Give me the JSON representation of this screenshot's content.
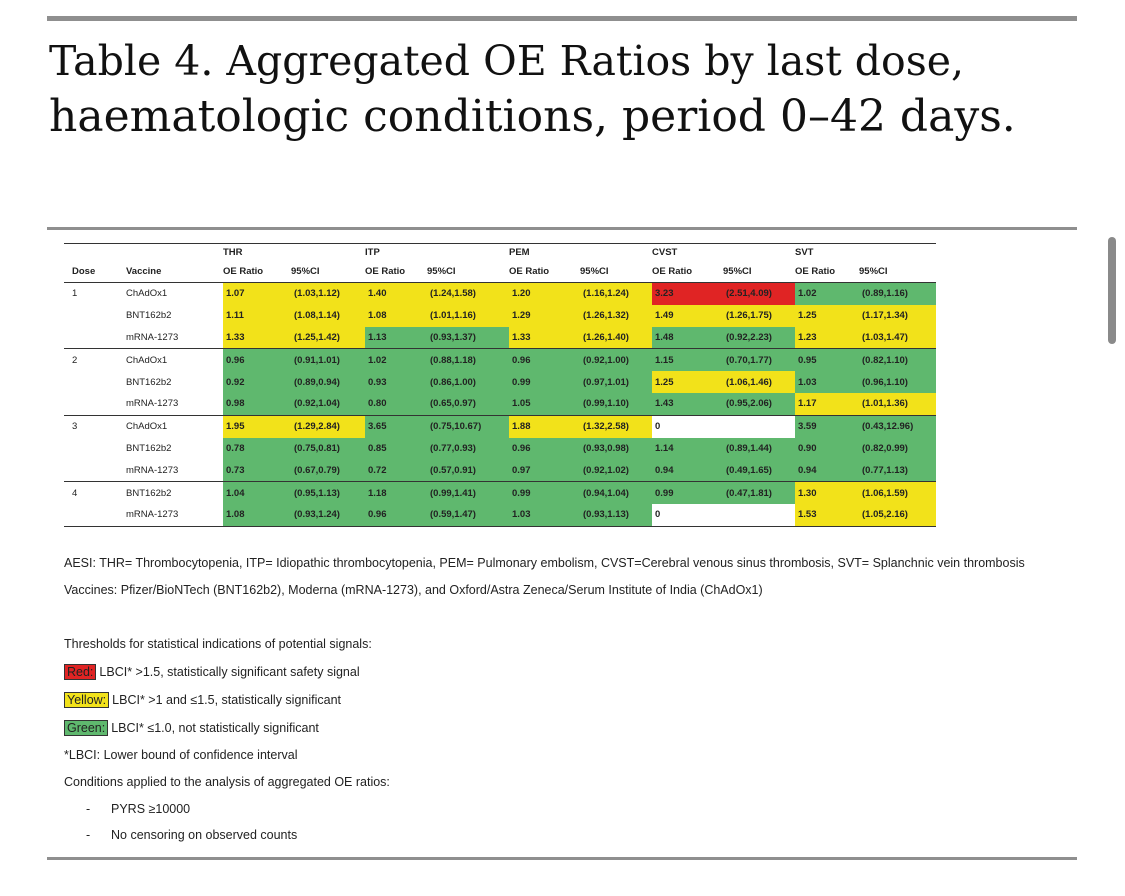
{
  "title": {
    "line1": "Table 4. Aggregated OE Ratios by last dose,",
    "line2": "haematologic conditions, period 0–42 days."
  },
  "table": {
    "groups": [
      "THR",
      "ITP",
      "PEM",
      "CVST",
      "SVT"
    ],
    "subheaders": [
      "Dose",
      "Vaccine",
      "OE Ratio",
      "95%CI",
      "OE Ratio",
      "95%CI",
      "OE Ratio",
      "95%CI",
      "OE Ratio",
      "95%CI",
      "OE Ratio",
      "95%CI"
    ],
    "colors": {
      "green": "#5fb86e",
      "yellow": "#f2e21a",
      "red": "#e02424"
    },
    "rows": [
      {
        "dose": "1",
        "vaccine": "ChAdOx1",
        "cells": [
          "1.07",
          "(1.03,1.12)",
          "1.40",
          "(1.24,1.58)",
          "1.20",
          "(1.16,1.24)",
          "3.23",
          "(2.51,4.09)",
          "1.02",
          "(0.89,1.16)"
        ],
        "colors": [
          "y",
          "y",
          "y",
          "y",
          "y",
          "y",
          "r",
          "r",
          "g",
          "g"
        ]
      },
      {
        "dose": "",
        "vaccine": "BNT162b2",
        "cells": [
          "1.11",
          "(1.08,1.14)",
          "1.08",
          "(1.01,1.16)",
          "1.29",
          "(1.26,1.32)",
          "1.49",
          "(1.26,1.75)",
          "1.25",
          "(1.17,1.34)"
        ],
        "colors": [
          "y",
          "y",
          "y",
          "y",
          "y",
          "y",
          "y",
          "y",
          "y",
          "y"
        ]
      },
      {
        "dose": "",
        "vaccine": "mRNA-1273",
        "cells": [
          "1.33",
          "(1.25,1.42)",
          "1.13",
          "(0.93,1.37)",
          "1.33",
          "(1.26,1.40)",
          "1.48",
          "(0.92,2.23)",
          "1.23",
          "(1.03,1.47)"
        ],
        "colors": [
          "y",
          "y",
          "g",
          "g",
          "y",
          "y",
          "g",
          "g",
          "y",
          "y"
        ]
      },
      {
        "dose": "2",
        "vaccine": "ChAdOx1",
        "cells": [
          "0.96",
          "(0.91,1.01)",
          "1.02",
          "(0.88,1.18)",
          "0.96",
          "(0.92,1.00)",
          "1.15",
          "(0.70,1.77)",
          "0.95",
          "(0.82,1.10)"
        ],
        "colors": [
          "g",
          "g",
          "g",
          "g",
          "g",
          "g",
          "g",
          "g",
          "g",
          "g"
        ]
      },
      {
        "dose": "",
        "vaccine": "BNT162b2",
        "cells": [
          "0.92",
          "(0.89,0.94)",
          "0.93",
          "(0.86,1.00)",
          "0.99",
          "(0.97,1.01)",
          "1.25",
          "(1.06,1.46)",
          "1.03",
          "(0.96,1.10)"
        ],
        "colors": [
          "g",
          "g",
          "g",
          "g",
          "g",
          "g",
          "y",
          "y",
          "g",
          "g"
        ]
      },
      {
        "dose": "",
        "vaccine": "mRNA-1273",
        "cells": [
          "0.98",
          "(0.92,1.04)",
          "0.80",
          "(0.65,0.97)",
          "1.05",
          "(0.99,1.10)",
          "1.43",
          "(0.95,2.06)",
          "1.17",
          "(1.01,1.36)"
        ],
        "colors": [
          "g",
          "g",
          "g",
          "g",
          "g",
          "g",
          "g",
          "g",
          "y",
          "y"
        ]
      },
      {
        "dose": "3",
        "vaccine": "ChAdOx1",
        "cells": [
          "1.95",
          "(1.29,2.84)",
          "3.65",
          "(0.75,10.67)",
          "1.88",
          "(1.32,2.58)",
          "0",
          "",
          "3.59",
          "(0.43,12.96)"
        ],
        "colors": [
          "y",
          "y",
          "g",
          "g",
          "y",
          "y",
          "w",
          "w",
          "g",
          "g"
        ]
      },
      {
        "dose": "",
        "vaccine": "BNT162b2",
        "cells": [
          "0.78",
          "(0.75,0.81)",
          "0.85",
          "(0.77,0.93)",
          "0.96",
          "(0.93,0.98)",
          "1.14",
          "(0.89,1.44)",
          "0.90",
          "(0.82,0.99)"
        ],
        "colors": [
          "g",
          "g",
          "g",
          "g",
          "g",
          "g",
          "g",
          "g",
          "g",
          "g"
        ]
      },
      {
        "dose": "",
        "vaccine": "mRNA-1273",
        "cells": [
          "0.73",
          "(0.67,0.79)",
          "0.72",
          "(0.57,0.91)",
          "0.97",
          "(0.92,1.02)",
          "0.94",
          "(0.49,1.65)",
          "0.94",
          "(0.77,1.13)"
        ],
        "colors": [
          "g",
          "g",
          "g",
          "g",
          "g",
          "g",
          "g",
          "g",
          "g",
          "g"
        ]
      },
      {
        "dose": "4",
        "vaccine": "BNT162b2",
        "cells": [
          "1.04",
          "(0.95,1.13)",
          "1.18",
          "(0.99,1.41)",
          "0.99",
          "(0.94,1.04)",
          "0.99",
          "(0.47,1.81)",
          "1.30",
          "(1.06,1.59)"
        ],
        "colors": [
          "g",
          "g",
          "g",
          "g",
          "g",
          "g",
          "g",
          "g",
          "y",
          "y"
        ]
      },
      {
        "dose": "",
        "vaccine": "mRNA-1273",
        "cells": [
          "1.08",
          "(0.93,1.24)",
          "0.96",
          "(0.59,1.47)",
          "1.03",
          "(0.93,1.13)",
          "0",
          "",
          "1.53",
          "(1.05,2.16)"
        ],
        "colors": [
          "g",
          "g",
          "g",
          "g",
          "g",
          "g",
          "w",
          "w",
          "y",
          "y"
        ]
      }
    ]
  },
  "notes": {
    "aesi": "AESI: THR= Thrombocytopenia, ITP= Idiopathic thrombocytopenia, PEM= Pulmonary embolism, CVST=Cerebral venous sinus thrombosis, SVT= Splanchnic vein thrombosis",
    "vaccines": "Vaccines: Pfizer/BioNTech (BNT162b2), Moderna (mRNA-1273), and Oxford/Astra Zeneca/Serum Institute of India (ChAdOx1)",
    "thresholds_heading": "Thresholds for statistical indications of potential signals:",
    "red_label": "Red:",
    "red_text": "LBCI* >1.5, statistically significant safety signal",
    "yellow_label": "Yellow:",
    "yellow_text": "LBCI* >1 and ≤1.5, statistically significant",
    "green_label": "Green:",
    "green_text": "LBCI* ≤1.0, not statistically significant",
    "lbci": "*LBCI: Lower bound of confidence interval",
    "conditions_heading": "Conditions applied to the analysis of aggregated OE ratios:",
    "bullet_mark": "-",
    "condition1": "PYRS ≥10000",
    "condition2": "No censoring on observed counts"
  }
}
